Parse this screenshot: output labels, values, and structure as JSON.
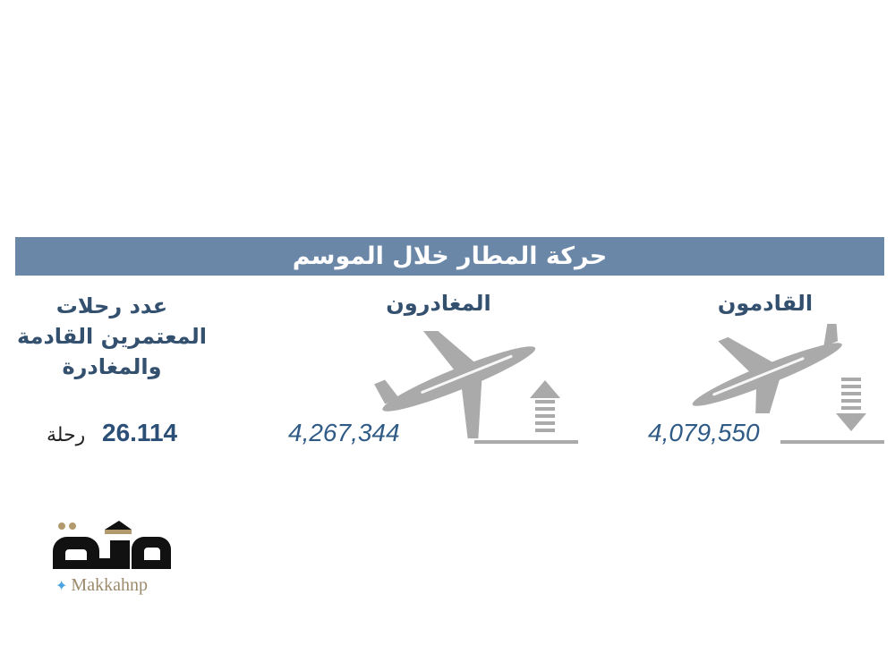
{
  "title": "حركة المطار خلال الموسم",
  "arrivals": {
    "label": "القادمون",
    "value": "4,079,550",
    "icon": "plane-landing-icon"
  },
  "departures": {
    "label": "المغادرون",
    "value": "4,267,344",
    "icon": "plane-takeoff-icon"
  },
  "flights": {
    "label_lines": [
      "عدد رحلات",
      "المعتمرين القادمة",
      "والمغادرة"
    ],
    "value": "26.114",
    "unit": "رحلة"
  },
  "logo": {
    "text": "مكة",
    "handle": "Makkahnp"
  },
  "colors": {
    "banner": "#6b87a8",
    "label": "#34506f",
    "number": "#2f5b86",
    "icon": "#aaaaaa",
    "logo_gold": "#b39a6e"
  }
}
